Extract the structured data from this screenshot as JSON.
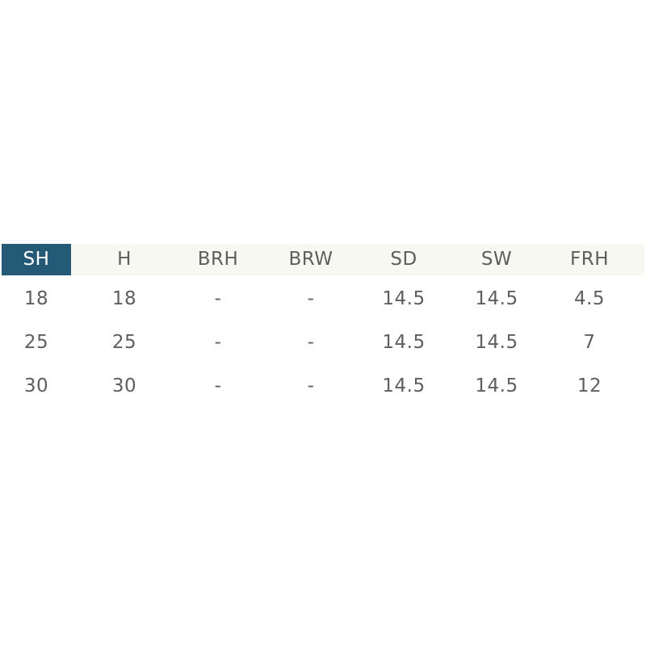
{
  "colors": {
    "active_header": "#245a75",
    "header_bg": "#f8f8f3",
    "text": "#5e5e5e"
  },
  "table": {
    "headers": [
      "SH",
      "H",
      "BRH",
      "BRW",
      "SD",
      "SW",
      "FRH"
    ],
    "active_header_index": 0,
    "rows": [
      [
        "18",
        "18",
        "-",
        "-",
        "14.5",
        "14.5",
        "4.5"
      ],
      [
        "25",
        "25",
        "-",
        "-",
        "14.5",
        "14.5",
        "7"
      ],
      [
        "30",
        "30",
        "-",
        "-",
        "14.5",
        "14.5",
        "12"
      ]
    ]
  }
}
